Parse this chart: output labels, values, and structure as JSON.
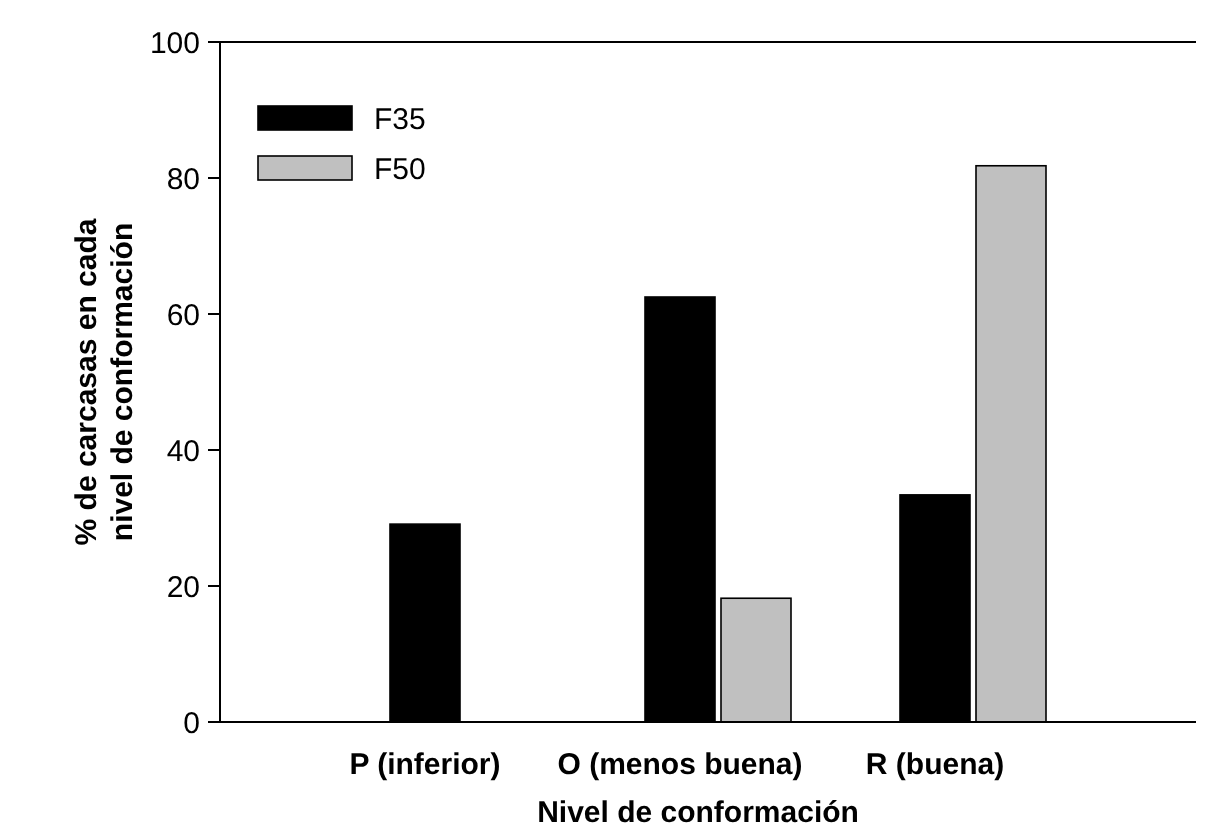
{
  "chart_data": {
    "type": "bar",
    "categories": [
      "P (inferior)",
      "O (menos buena)",
      "R (buena)"
    ],
    "series": [
      {
        "name": "F35",
        "color": "#000000",
        "values": [
          29.1,
          62.5,
          33.4
        ]
      },
      {
        "name": "F50",
        "color": "#c0c0c0",
        "values": [
          0,
          18.2,
          81.8
        ]
      }
    ],
    "xlabel": "Nivel de conformación",
    "ylabel": "% de carcasas en cada\nnivel de conformación",
    "ylim": [
      0,
      100
    ],
    "yticks": [
      0,
      20,
      40,
      60,
      80,
      100
    ],
    "grid": false,
    "legend": "top left"
  }
}
